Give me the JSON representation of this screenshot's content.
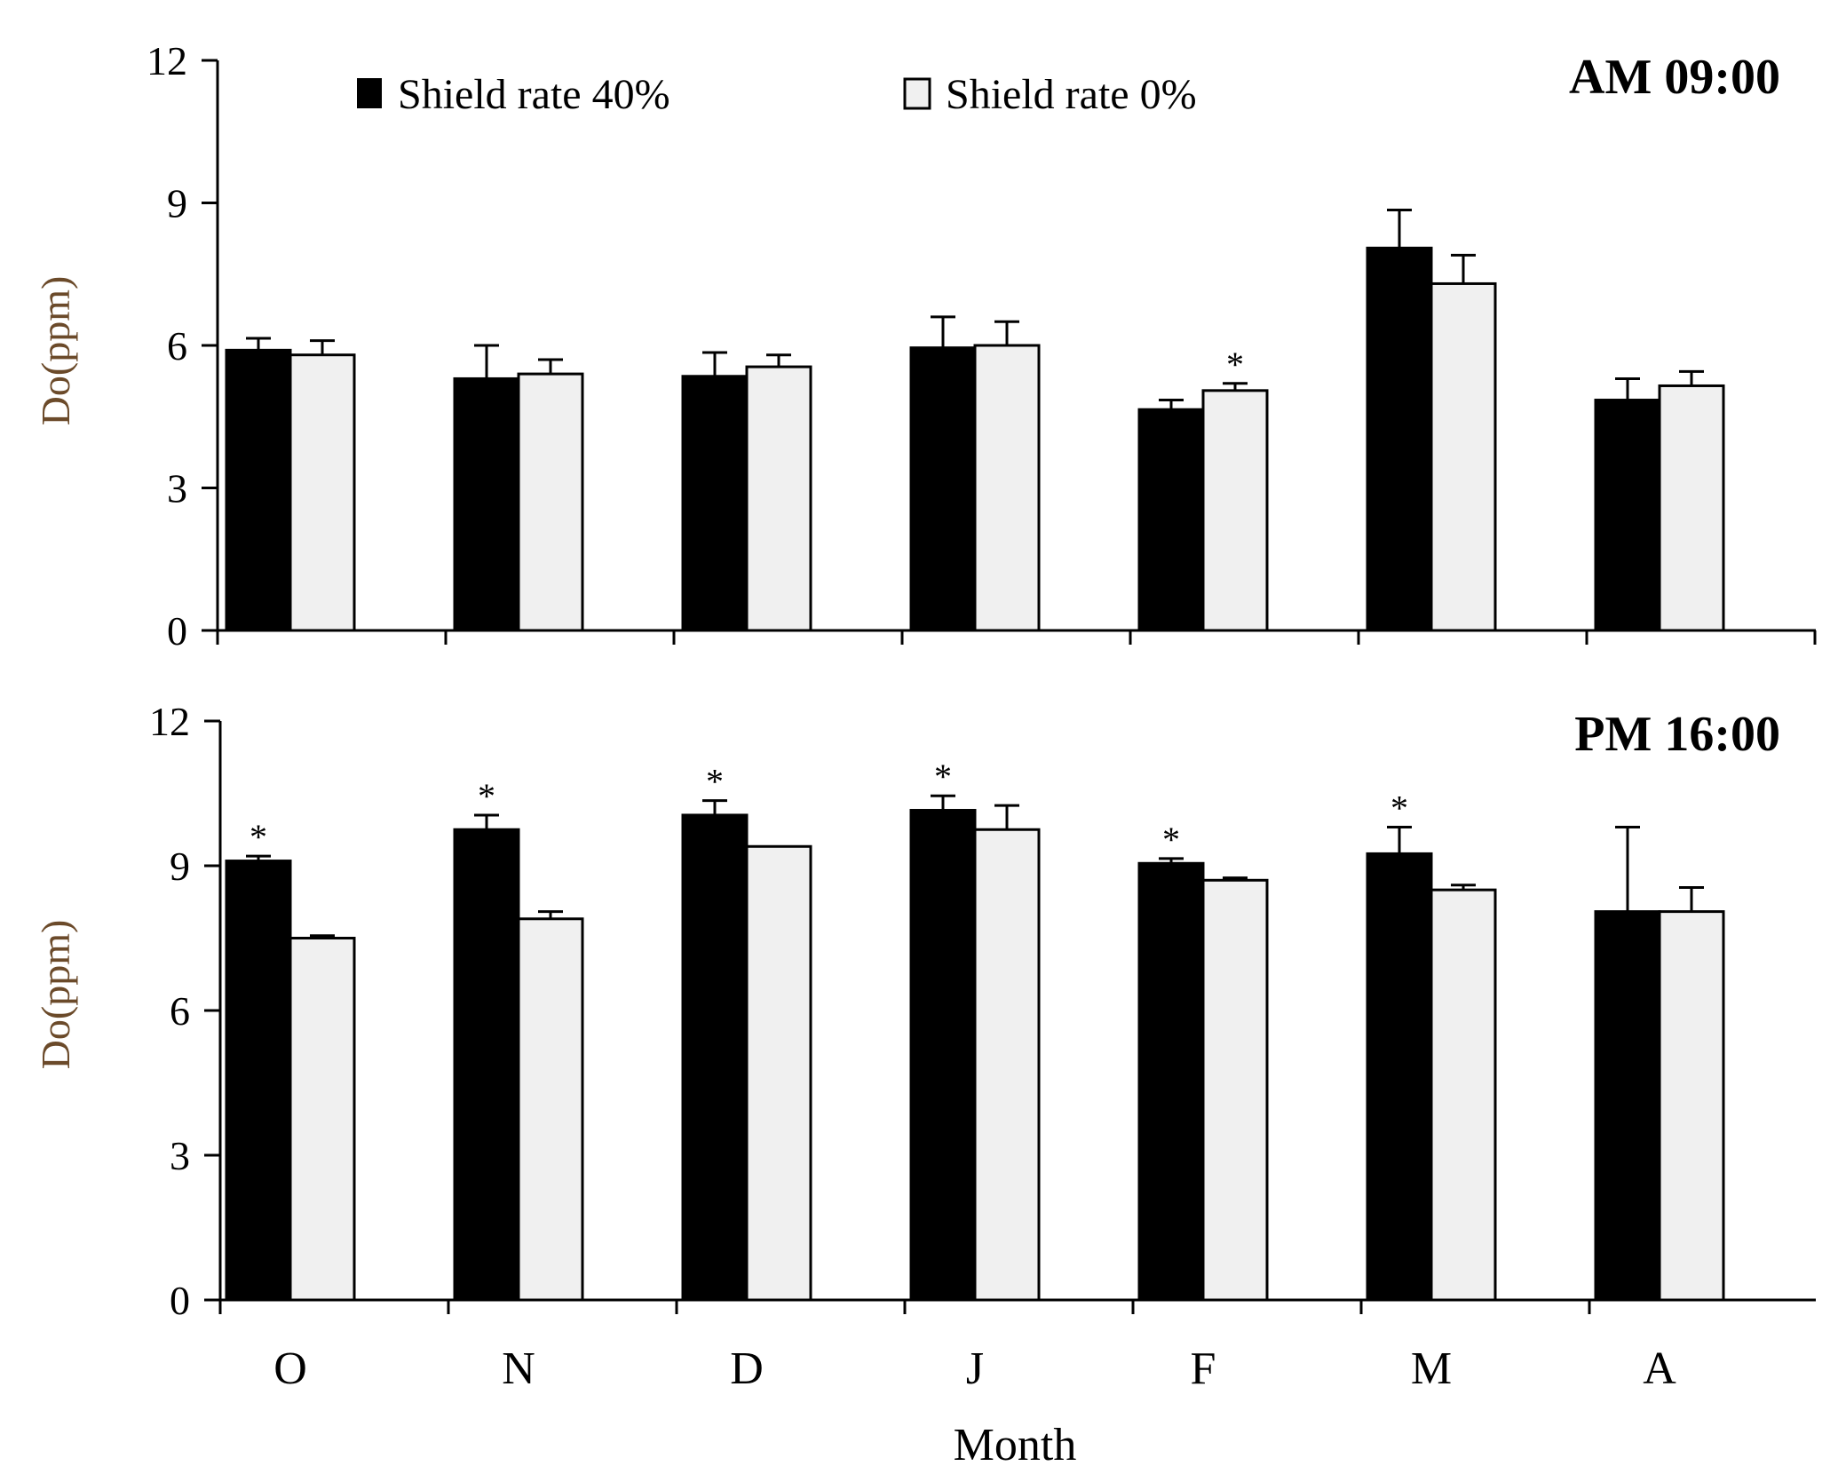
{
  "chart_data": {
    "type": "bar",
    "xlabel": "Month",
    "categories": [
      "O",
      "N",
      "D",
      "J",
      "F",
      "M",
      "A"
    ],
    "legend": [
      "Shield rate 40%",
      "Shield rate 0%"
    ],
    "colors": {
      "shield40": "#000000",
      "shield0": "#f0f0f0",
      "ylabel": "#6b4a2a"
    },
    "legend_position": "top",
    "significance_marker": "*",
    "panels": [
      {
        "title": "AM 09:00",
        "ylabel": "Do(ppm)",
        "ylim": [
          0,
          12
        ],
        "yticks": [
          0,
          3,
          6,
          9,
          12
        ],
        "series": [
          {
            "name": "Shield rate 40%",
            "values": [
              5.9,
              5.3,
              5.35,
              5.95,
              4.65,
              8.05,
              4.85
            ],
            "errors": [
              0.25,
              0.7,
              0.5,
              0.65,
              0.2,
              0.8,
              0.45
            ]
          },
          {
            "name": "Shield rate 0%",
            "values": [
              5.8,
              5.4,
              5.55,
              6.0,
              5.05,
              7.3,
              5.15
            ],
            "errors": [
              0.3,
              0.3,
              0.25,
              0.5,
              0.15,
              0.6,
              0.3
            ]
          }
        ],
        "significance": [
          {
            "category": "F",
            "series": 1
          }
        ]
      },
      {
        "title": "PM 16:00",
        "ylabel": "Do(ppm)",
        "ylim": [
          0,
          12
        ],
        "yticks": [
          0,
          3,
          6,
          9,
          12
        ],
        "series": [
          {
            "name": "Shield rate 40%",
            "values": [
              9.1,
              9.75,
              10.05,
              10.15,
              9.05,
              9.25,
              8.05
            ],
            "errors": [
              0.1,
              0.3,
              0.3,
              0.3,
              0.1,
              0.55,
              1.75
            ]
          },
          {
            "name": "Shield rate 0%",
            "values": [
              7.5,
              7.9,
              9.4,
              9.75,
              8.7,
              8.5,
              8.05
            ],
            "errors": [
              0.05,
              0.15,
              0.0,
              0.5,
              0.05,
              0.1,
              0.5
            ]
          }
        ],
        "significance": [
          {
            "category": "O",
            "series": 0
          },
          {
            "category": "N",
            "series": 0
          },
          {
            "category": "D",
            "series": 0
          },
          {
            "category": "J",
            "series": 0
          },
          {
            "category": "F",
            "series": 0
          },
          {
            "category": "M",
            "series": 0
          }
        ]
      }
    ]
  }
}
